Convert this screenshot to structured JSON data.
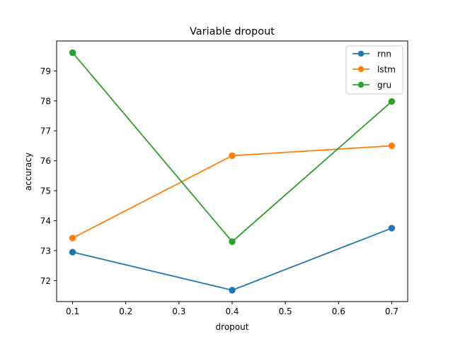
{
  "chart_data": {
    "type": "line",
    "title": "Variable dropout",
    "xlabel": "dropout",
    "ylabel": "accuracy",
    "x": [
      0.1,
      0.4,
      0.7
    ],
    "xlim": [
      0.07,
      0.73
    ],
    "ylim": [
      71.3,
      80.0
    ],
    "xticks": [
      0.1,
      0.2,
      0.3,
      0.4,
      0.5,
      0.6,
      0.7
    ],
    "xtick_labels": [
      "0.1",
      "0.2",
      "0.3",
      "0.4",
      "0.5",
      "0.6",
      "0.7"
    ],
    "yticks": [
      72,
      73,
      74,
      75,
      76,
      77,
      78,
      79
    ],
    "ytick_labels": [
      "72",
      "73",
      "74",
      "75",
      "76",
      "77",
      "78",
      "79"
    ],
    "grid": false,
    "legend_position": "top-right",
    "series": [
      {
        "name": "rnn",
        "color": "#1f77b4",
        "values": [
          72.95,
          71.68,
          73.75
        ]
      },
      {
        "name": "lstm",
        "color": "#ff7f0e",
        "values": [
          73.42,
          76.17,
          76.5
        ]
      },
      {
        "name": "gru",
        "color": "#2ca02c",
        "values": [
          79.61,
          73.3,
          77.98
        ]
      }
    ]
  }
}
